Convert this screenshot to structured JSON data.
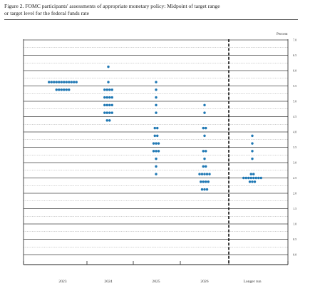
{
  "title": {
    "line1": "Figure 2.  FOMC participants' assessments of appropriate monetary policy:  Midpoint of target range",
    "line2": "or target level for the federal funds rate"
  },
  "colors": {
    "dot": "#1f78b4",
    "axis": "#222222",
    "grid": "#999999",
    "text": "#333333"
  },
  "chart_data": {
    "type": "scatter",
    "subtype": "dot-plot",
    "title": "FOMC participants' assessments of appropriate monetary policy: Midpoint of target range or target level for the federal funds rate",
    "ylabel": "Percent",
    "ylim": [
      0,
      7.0
    ],
    "y_ticks": [
      "0.0",
      "0.5",
      "1.0",
      "1.5",
      "2.0",
      "2.5",
      "3.0",
      "3.5",
      "4.0",
      "4.5",
      "5.0",
      "5.5",
      "6.0",
      "6.5",
      "7.0"
    ],
    "y_tick_values": [
      0,
      0.5,
      1.0,
      1.5,
      2.0,
      2.5,
      3.0,
      3.5,
      4.0,
      4.5,
      5.0,
      5.5,
      6.0,
      6.5,
      7.0
    ],
    "categories": [
      "2023",
      "2024",
      "2025",
      "2026",
      "Longer run"
    ],
    "grid": true,
    "divider_before": "Longer run",
    "series": [
      {
        "points": [
          {
            "y": 5.625,
            "count": 12
          },
          {
            "y": 5.375,
            "count": 6
          }
        ]
      },
      {
        "points": [
          {
            "y": 6.125,
            "count": 1
          },
          {
            "y": 5.625,
            "count": 1
          },
          {
            "y": 5.375,
            "count": 4
          },
          {
            "y": 5.125,
            "count": 4
          },
          {
            "y": 4.875,
            "count": 4
          },
          {
            "y": 4.625,
            "count": 4
          },
          {
            "y": 4.375,
            "count": 2
          }
        ]
      },
      {
        "points": [
          {
            "y": 5.625,
            "count": 1
          },
          {
            "y": 5.375,
            "count": 1
          },
          {
            "y": 5.125,
            "count": 1
          },
          {
            "y": 4.875,
            "count": 1
          },
          {
            "y": 4.625,
            "count": 1
          },
          {
            "y": 4.125,
            "count": 2
          },
          {
            "y": 3.875,
            "count": 2
          },
          {
            "y": 3.625,
            "count": 3
          },
          {
            "y": 3.375,
            "count": 3
          },
          {
            "y": 3.125,
            "count": 1
          },
          {
            "y": 2.875,
            "count": 1
          },
          {
            "y": 2.625,
            "count": 1
          }
        ]
      },
      {
        "points": [
          {
            "y": 4.875,
            "count": 1
          },
          {
            "y": 4.625,
            "count": 1
          },
          {
            "y": 4.125,
            "count": 2
          },
          {
            "y": 3.875,
            "count": 1
          },
          {
            "y": 3.375,
            "count": 2
          },
          {
            "y": 3.125,
            "count": 1
          },
          {
            "y": 2.875,
            "count": 2
          },
          {
            "y": 2.625,
            "count": 5
          },
          {
            "y": 2.375,
            "count": 4
          },
          {
            "y": 2.125,
            "count": 3
          }
        ]
      },
      {
        "points": [
          {
            "y": 3.875,
            "count": 1
          },
          {
            "y": 3.625,
            "count": 1
          },
          {
            "y": 3.375,
            "count": 1
          },
          {
            "y": 3.125,
            "count": 1
          },
          {
            "y": 2.625,
            "count": 2
          },
          {
            "y": 2.5,
            "count": 8
          },
          {
            "y": 2.375,
            "count": 3
          }
        ]
      }
    ]
  }
}
